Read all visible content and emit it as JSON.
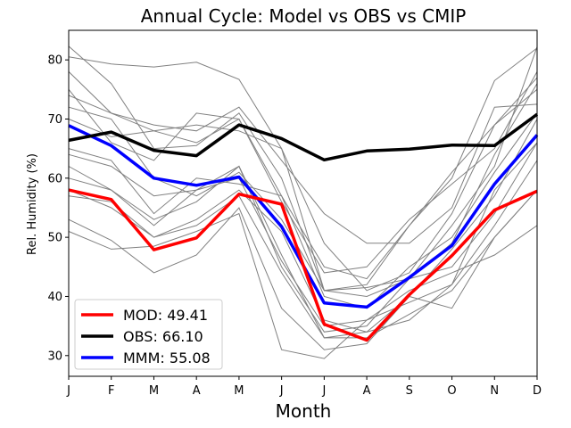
{
  "chart_data": {
    "type": "line",
    "title": "Annual Cycle: Model vs OBS vs CMIP",
    "xlabel": "Month",
    "ylabel": "Rel. Humidity (%)",
    "categories": [
      "J",
      "F",
      "M",
      "A",
      "M",
      "J",
      "J",
      "A",
      "S",
      "O",
      "N",
      "D"
    ],
    "ylim": [
      26.5,
      85
    ],
    "yticks": [
      30,
      40,
      50,
      60,
      70,
      80
    ],
    "legend_position": "lower-left",
    "ensemble_color": "#808080",
    "ensemble": [
      [
        82.3,
        76.0,
        65.0,
        65.5,
        71.0,
        60.0,
        41.0,
        42.0,
        52.0,
        61.0,
        69.0,
        77.0
      ],
      [
        80.5,
        79.3,
        78.8,
        79.6,
        76.7,
        65.0,
        41.0,
        40.0,
        43.0,
        52.0,
        62.0,
        82.2
      ],
      [
        78.0,
        71.0,
        68.0,
        66.0,
        70.0,
        57.0,
        45.0,
        43.0,
        52.0,
        60.0,
        76.5,
        82.0
      ],
      [
        75.0,
        66.0,
        63.0,
        71.0,
        70.0,
        56.0,
        44.0,
        45.0,
        53.0,
        59.0,
        65.0,
        78.0
      ],
      [
        74.0,
        71.0,
        69.0,
        68.0,
        72.0,
        63.0,
        54.0,
        49.0,
        49.0,
        55.0,
        72.0,
        72.5
      ],
      [
        72.0,
        70.0,
        60.0,
        57.0,
        61.0,
        53.0,
        41.0,
        41.5,
        43.0,
        49.0,
        64.0,
        76.0
      ],
      [
        70.0,
        67.0,
        68.0,
        69.0,
        68.0,
        65.0,
        49.0,
        41.0,
        44.0,
        54.0,
        69.0,
        75.0
      ],
      [
        65.0,
        63.0,
        54.0,
        60.0,
        59.0,
        57.0,
        40.0,
        38.0,
        45.0,
        50.0,
        61.0,
        71.0
      ],
      [
        64.0,
        62.0,
        57.0,
        58.0,
        62.0,
        47.0,
        33.0,
        34.0,
        40.0,
        48.0,
        57.0,
        70.0
      ],
      [
        60.0,
        58.0,
        53.0,
        56.0,
        62.0,
        45.0,
        34.0,
        35.0,
        43.0,
        45.0,
        54.0,
        66.0
      ],
      [
        58.0,
        55.0,
        50.0,
        53.0,
        58.0,
        51.0,
        36.0,
        34.0,
        36.0,
        42.0,
        52.0,
        63.0
      ],
      [
        57.0,
        56.0,
        50.0,
        52.0,
        57.0,
        44.0,
        33.0,
        33.0,
        37.0,
        41.0,
        50.0,
        58.0
      ],
      [
        53.0,
        49.5,
        44.0,
        47.0,
        55.0,
        38.0,
        31.0,
        32.0,
        40.0,
        38.0,
        50.0,
        58.0
      ],
      [
        51.0,
        48.0,
        48.5,
        51.0,
        54.0,
        31.0,
        29.5,
        36.0,
        41.0,
        44.0,
        47.0,
        52.0
      ],
      [
        62.0,
        58.0,
        52.0,
        58.0,
        60.0,
        46.0,
        35.0,
        36.0,
        39.0,
        42.0,
        58.0,
        66.0
      ]
    ],
    "series": [
      {
        "name": "MMM",
        "legend_label": "MMM: 55.08",
        "color": "#0000ff",
        "values": [
          68.9,
          65.5,
          60.0,
          58.8,
          60.2,
          51.8,
          38.9,
          38.2,
          43.2,
          48.6,
          59.0,
          67.3
        ]
      },
      {
        "name": "OBS",
        "legend_label": "OBS: 66.10",
        "color": "#000000",
        "values": [
          66.4,
          67.8,
          64.7,
          63.8,
          69.0,
          66.7,
          63.1,
          64.6,
          64.9,
          65.6,
          65.5,
          70.8
        ]
      },
      {
        "name": "MOD",
        "legend_label": "MOD: 49.41",
        "color": "#ff0000",
        "values": [
          58.0,
          56.4,
          47.9,
          49.9,
          57.3,
          55.6,
          35.3,
          32.6,
          40.3,
          46.9,
          54.6,
          57.8
        ]
      }
    ],
    "legend_order": [
      "MOD",
      "OBS",
      "MMM"
    ]
  }
}
